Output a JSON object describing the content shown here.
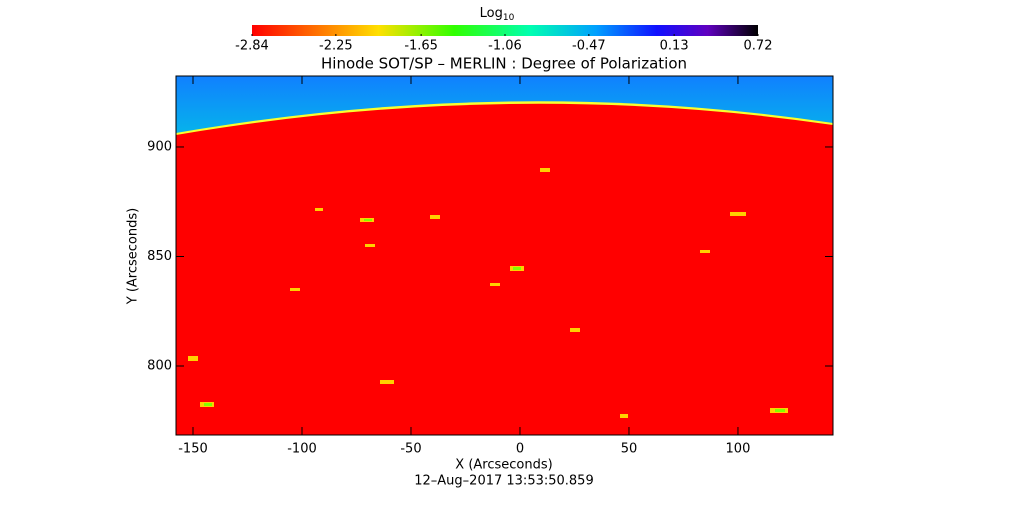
{
  "chart_data": {
    "type": "image",
    "title": "Hinode SOT/SP – MERLIN : Degree of Polarization",
    "xlabel": "X (Arcseconds)",
    "ylabel": "Y (Arcseconds)",
    "subtitle": "12–Aug–2017 13:53:50.859",
    "xlim": [
      -157.8,
      143.6
    ],
    "xticks": [
      -150,
      -100,
      -50,
      0,
      50,
      100
    ],
    "ylim": [
      768.5,
      932.4
    ],
    "yticks": [
      800,
      850,
      900
    ],
    "colorbar": {
      "label": "Log",
      "label_subscript": "10",
      "lim": [
        -2.84,
        0.72
      ],
      "ticks": [
        -2.84,
        -2.25,
        -1.65,
        -1.06,
        -0.47,
        0.13,
        0.72
      ]
    }
  }
}
